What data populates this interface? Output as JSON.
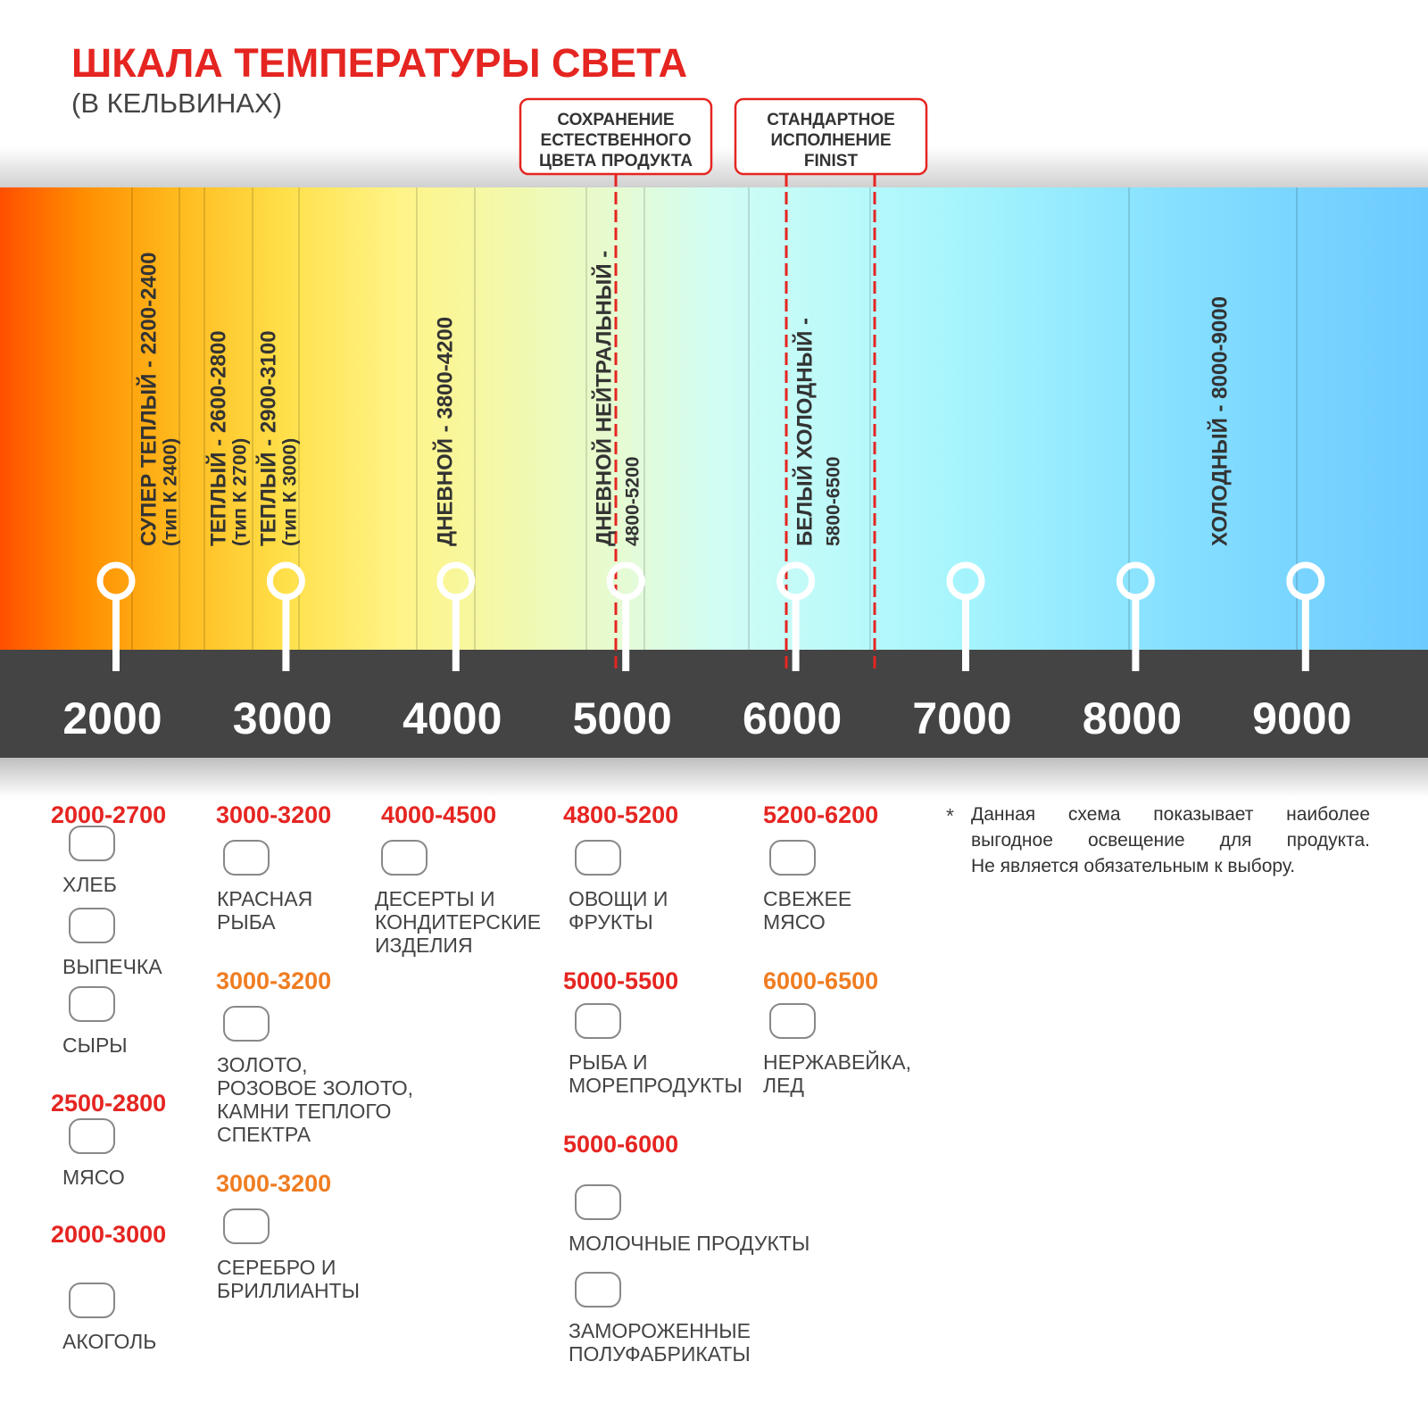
{
  "header": {
    "title": "ШКАЛА ТЕМПЕРАТУРЫ СВЕТА",
    "subtitle": "(В КЕЛЬВИНАХ)"
  },
  "callouts": [
    {
      "lines": [
        "СОХРАНЕНИЕ",
        "ЕСТЕСТВЕННОГО",
        "ЦВЕТА ПРОДУКТА"
      ]
    },
    {
      "lines": [
        "СТАНДАРТНОЕ",
        "ИСПОЛНЕНИЕ",
        "FINIST"
      ]
    }
  ],
  "zones": [
    {
      "lines": [
        "СУПЕР ТЕПЛЫЙ - 2200-2400",
        "(тип К 2400)"
      ]
    },
    {
      "lines": [
        "ТЕПЛЫЙ - 2600-2800",
        "(тип К 2700)"
      ]
    },
    {
      "lines": [
        "ТЕПЛЫЙ - 2900-3100",
        "(тип К 3000)"
      ]
    },
    {
      "lines": [
        "ДНЕВНОЙ - 3800-4200"
      ]
    },
    {
      "lines": [
        "ДНЕВНОЙ НЕЙТРАЛЬНЫЙ -",
        "4800-5200"
      ]
    },
    {
      "lines": [
        "БЕЛЫЙ ХОЛОДНЫЙ -",
        "5800-6500"
      ]
    },
    {
      "lines": [
        "ХОЛОДНЫЙ - 8000-9000"
      ]
    }
  ],
  "scale": {
    "ticks": [
      2000,
      3000,
      4000,
      5000,
      6000,
      7000,
      8000,
      9000
    ]
  },
  "products": [
    {
      "range": "2000-2700",
      "color": "#e52521",
      "items": [
        {
          "lines": [
            "ХЛЕБ"
          ]
        },
        {
          "lines": [
            "ВЫПЕЧКА"
          ]
        },
        {
          "lines": [
            "СЫРЫ"
          ]
        }
      ]
    },
    {
      "range": "2500-2800",
      "color": "#e52521",
      "items": [
        {
          "lines": [
            "МЯСО"
          ]
        }
      ]
    },
    {
      "range": "2000-3000",
      "color": "#e52521",
      "items": [
        {
          "lines": [
            "АКОГОЛЬ"
          ]
        }
      ]
    },
    {
      "range": "3000-3200",
      "color": "#e52521",
      "items": [
        {
          "lines": [
            "КРАСНАЯ",
            "РЫБА"
          ]
        }
      ]
    },
    {
      "range": "3000-3200",
      "color": "#ef7d22",
      "items": [
        {
          "lines": [
            "ЗОЛОТО,",
            "РОЗОВОЕ ЗОЛОТО,",
            "КАМНИ ТЕПЛОГО",
            "СПЕКТРА"
          ]
        }
      ]
    },
    {
      "range": "3000-3200",
      "color": "#ef7d22",
      "items": [
        {
          "lines": [
            "СЕРЕБРО И",
            "БРИЛЛИАНТЫ"
          ]
        }
      ]
    },
    {
      "range": "4000-4500",
      "color": "#e52521",
      "items": [
        {
          "lines": [
            "ДЕСЕРТЫ И",
            "КОНДИТЕРСКИЕ",
            "ИЗДЕЛИЯ"
          ]
        }
      ]
    },
    {
      "range": "4800-5200",
      "color": "#e52521",
      "items": [
        {
          "lines": [
            "ОВОЩИ И",
            "ФРУКТЫ"
          ]
        }
      ]
    },
    {
      "range": "5000-5500",
      "color": "#e52521",
      "items": [
        {
          "lines": [
            "РЫБА И",
            "МОРЕПРОДУКТЫ"
          ]
        }
      ]
    },
    {
      "range": "5000-6000",
      "color": "#e52521",
      "items": [
        {
          "lines": [
            "МОЛОЧНЫЕ ПРОДУКТЫ"
          ]
        },
        {
          "lines": [
            "ЗАМОРОЖЕННЫЕ",
            "ПОЛУФАБРИКАТЫ"
          ]
        }
      ]
    },
    {
      "range": "5200-6200",
      "color": "#e52521",
      "items": [
        {
          "lines": [
            "СВЕЖЕЕ",
            "МЯСО"
          ]
        }
      ]
    },
    {
      "range": "6000-6500",
      "color": "#ef7d22",
      "items": [
        {
          "lines": [
            "НЕРЖАВЕЙКА,",
            "ЛЕД"
          ]
        }
      ]
    }
  ],
  "note": {
    "marker": "*",
    "lines": [
      "Данная схема показывает наиболее",
      "выгодное освещение для продукта.",
      "Не является обязательным к выбору."
    ]
  }
}
